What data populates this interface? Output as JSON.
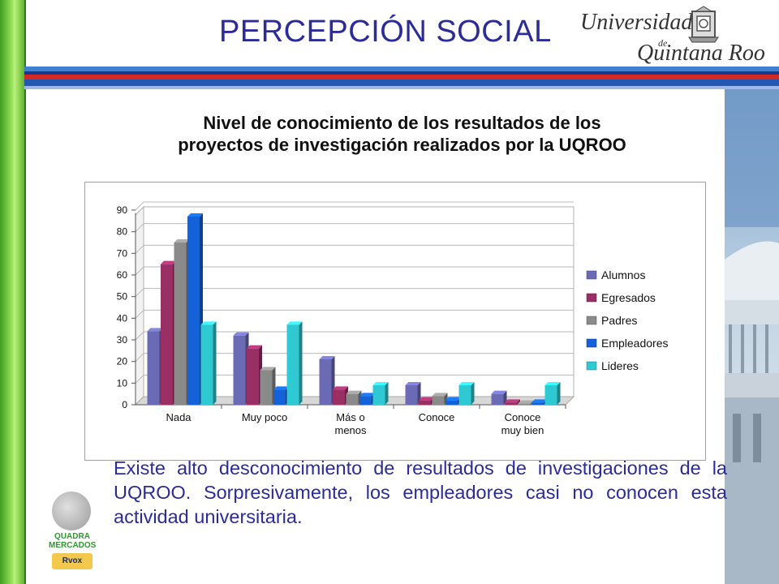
{
  "slide": {
    "title": "PERCEPCIÓN SOCIAL",
    "logo": {
      "line1": "Universidad",
      "line2": "de",
      "line3": "Quintana Roo",
      "crest_icon": "university-crest-icon"
    },
    "body_text": "Existe alto desconocimiento de resultados de investigaciones de la UQROO. Sorpresivamente, los empleadores casi no conocen esta actividad universitaria.",
    "bottom_logo": {
      "line1": "QUADRA",
      "line2": "MERCADOS",
      "badge": "Rvox"
    }
  },
  "chart_data": {
    "type": "bar",
    "title_lines": [
      "Nivel de conocimiento de los resultados de los",
      "proyectos de investigación realizados por la UQROO"
    ],
    "categories": [
      [
        "Nada"
      ],
      [
        "Muy poco"
      ],
      [
        "Más o",
        "menos"
      ],
      [
        "Conoce"
      ],
      [
        "Conoce",
        "muy bien"
      ]
    ],
    "series": [
      {
        "name": "Alumnos",
        "color": "#6b6bb5",
        "values": [
          34,
          32,
          21,
          9,
          5
        ]
      },
      {
        "name": "Egresados",
        "color": "#9a2f66",
        "values": [
          65,
          26,
          7,
          2,
          1
        ]
      },
      {
        "name": "Padres",
        "color": "#8a8a8a",
        "values": [
          75,
          16,
          5,
          4,
          0.5
        ]
      },
      {
        "name": "Empleadores",
        "color": "#1462d9",
        "values": [
          87,
          7,
          4,
          2,
          1
        ]
      },
      {
        "name": "Lideres",
        "color": "#2ec9d2",
        "values": [
          37,
          37,
          9,
          9,
          9
        ]
      }
    ],
    "y_ticks": [
      0,
      10,
      20,
      30,
      40,
      50,
      60,
      70,
      80,
      90
    ],
    "ylim": [
      0,
      90
    ],
    "grid": true,
    "legend_position": "right"
  }
}
